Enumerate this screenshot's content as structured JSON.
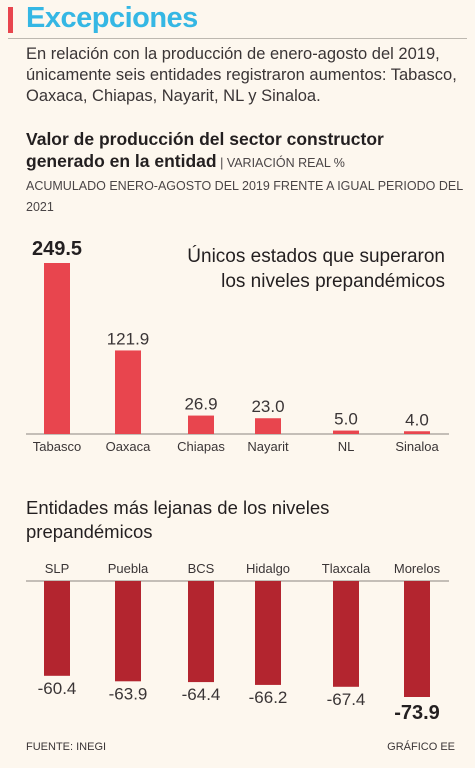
{
  "header": {
    "title": "Excepciones",
    "intro": "En relación con la producción de enero-agosto del 2019, únicamente seis entidades registraron aumentos: Tabasco, Oaxaca, Chiapas, Nayarit, NL y Sinaloa."
  },
  "chart_title": {
    "main": "Valor de producción del sector constructor generado en la entidad",
    "sep": " | ",
    "sub": "VARIACIÓN REAL %",
    "sub2": "ACUMULADO ENERO-AGOSTO DEL 2019 FRENTE A IGUAL PERIODO DEL 2021"
  },
  "colors": {
    "accent_title": "#35b7e4",
    "header_bar": "#e8454e",
    "positive_bar": "#e8454e",
    "negative_bar": "#b3252f",
    "background": "#fdf7ee"
  },
  "chart_data": [
    {
      "type": "bar",
      "title": "Únicos estados que superaron los niveles prepandémicos",
      "categories": [
        "Tabasco",
        "Oaxaca",
        "Chiapas",
        "Nayarit",
        "NL",
        "Sinaloa"
      ],
      "values": [
        249.5,
        121.9,
        26.9,
        23.0,
        5.0,
        4.0
      ],
      "value_labels": [
        "249.5",
        "121.9",
        "26.9",
        "23.0",
        "5.0",
        "4.0"
      ],
      "highlight_index": 0,
      "ylim": [
        0,
        249.5
      ]
    },
    {
      "type": "bar",
      "title": "Entidades más lejanas de los niveles prepandémicos",
      "categories": [
        "SLP",
        "Puebla",
        "BCS",
        "Hidalgo",
        "Tlaxcala",
        "Morelos"
      ],
      "values": [
        -60.4,
        -63.9,
        -64.4,
        -66.2,
        -67.4,
        -73.9
      ],
      "value_labels": [
        "-60.4",
        "-63.9",
        "-64.4",
        "-66.2",
        "-67.4",
        "-73.9"
      ],
      "highlight_index": 5,
      "ylim": [
        -73.9,
        0
      ]
    }
  ],
  "footer": {
    "source": "FUENTE: INEGI",
    "credit": "GRÁFICO EE"
  }
}
